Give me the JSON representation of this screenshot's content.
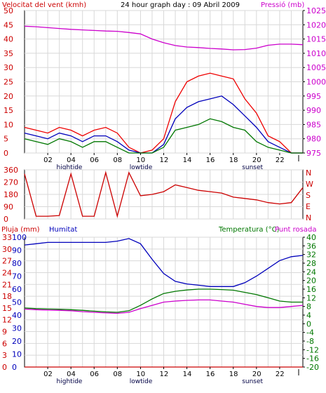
{
  "chart_data": [
    {
      "type": "line",
      "title": "24 hour graph day : 09 Abril 2009",
      "left_label": "Velocitat del vent (kmh)",
      "right_label": "Pressió (mb)",
      "x": [
        0,
        1,
        2,
        3,
        4,
        5,
        6,
        7,
        8,
        9,
        10,
        11,
        12,
        13,
        14,
        15,
        16,
        17,
        18,
        19,
        20,
        21,
        22,
        23,
        24
      ],
      "x_ticks": [
        "02",
        "04",
        "06",
        "08",
        "10",
        "12",
        "14",
        "16",
        "18",
        "20",
        "22"
      ],
      "x_markers": [
        "hightide",
        "lowtide",
        "sunset"
      ],
      "ylim": [
        0,
        50
      ],
      "y_ticks": [
        0,
        5,
        10,
        15,
        20,
        25,
        30,
        35,
        40,
        45,
        50
      ],
      "y2lim": [
        975,
        1025
      ],
      "y2_ticks": [
        975,
        980,
        985,
        990,
        995,
        1000,
        1005,
        1010,
        1015,
        1020,
        1025
      ],
      "series": [
        {
          "axis": "right",
          "color": "#cc00cc",
          "values": [
            1019.5,
            1019.3,
            1019.0,
            1018.7,
            1018.4,
            1018.2,
            1018.0,
            1017.8,
            1017.7,
            1017.3,
            1016.8,
            1015.0,
            1013.7,
            1012.7,
            1012.2,
            1012.0,
            1011.7,
            1011.5,
            1011.2,
            1011.3,
            1011.8,
            1012.8,
            1013.2,
            1013.2,
            1013.0
          ]
        },
        {
          "axis": "left",
          "color": "#ee0000",
          "values": [
            9,
            8,
            7,
            9,
            8,
            6,
            8,
            9,
            7,
            2,
            0,
            1,
            5,
            18,
            25,
            27,
            28,
            27,
            26,
            19,
            14,
            6,
            4,
            0,
            0
          ]
        },
        {
          "axis": "left",
          "color": "#0000bb",
          "values": [
            7,
            6,
            5,
            7,
            6,
            4,
            6,
            6,
            4,
            1,
            0,
            0,
            3,
            12,
            16,
            18,
            19,
            20,
            17,
            13,
            9,
            4,
            2,
            0,
            0
          ]
        },
        {
          "axis": "left",
          "color": "#007700",
          "values": [
            5,
            4,
            3,
            5,
            4,
            2,
            4,
            4,
            2,
            0,
            0,
            0,
            2,
            8,
            9,
            10,
            12,
            11,
            9,
            8,
            4,
            2,
            1,
            0,
            0
          ]
        }
      ]
    },
    {
      "type": "line",
      "left_label": "",
      "right_compass": [
        "N",
        "W",
        "S",
        "E",
        "N"
      ],
      "x": [
        0,
        1,
        2,
        3,
        4,
        5,
        6,
        7,
        8,
        9,
        10,
        11,
        12,
        13,
        14,
        15,
        16,
        17,
        18,
        19,
        20,
        21,
        22,
        23,
        24
      ],
      "x_ticks": [],
      "ylim": [
        0,
        360
      ],
      "y_ticks": [
        0,
        90,
        180,
        270,
        360
      ],
      "series": [
        {
          "axis": "left",
          "color": "#cc0000",
          "values": [
            330,
            20,
            20,
            25,
            330,
            20,
            20,
            340,
            20,
            340,
            170,
            180,
            200,
            250,
            230,
            210,
            200,
            190,
            160,
            150,
            140,
            120,
            110,
            120,
            230
          ]
        }
      ]
    },
    {
      "type": "line",
      "left_label": "Pluja (mm)",
      "mid_label": "Humitat",
      "right_label_a": "Temperatura (°C)",
      "right_label_b": "Punt rosada",
      "x": [
        0,
        1,
        2,
        3,
        4,
        5,
        6,
        7,
        8,
        9,
        10,
        11,
        12,
        13,
        14,
        15,
        16,
        17,
        18,
        19,
        20,
        21,
        22,
        23,
        24
      ],
      "x_ticks": [
        "02",
        "04",
        "06",
        "08",
        "10",
        "12",
        "14",
        "16",
        "18",
        "20",
        "22"
      ],
      "x_markers": [
        "hightide",
        "lowtide",
        "sunset"
      ],
      "ylim": [
        0,
        33
      ],
      "y_ticks": [
        "0",
        "3",
        "6",
        "9",
        "12",
        "15",
        "18",
        "21",
        "24",
        "27",
        "30",
        "33"
      ],
      "y_mid_ticks": [
        "0",
        "10",
        "20",
        "30",
        "40",
        "50",
        "60",
        "70",
        "80",
        "90",
        "100"
      ],
      "y2lim": [
        -20,
        40
      ],
      "y2_ticks": [
        -20,
        -16,
        -12,
        -8,
        -4,
        0,
        4,
        8,
        12,
        16,
        20,
        24,
        28,
        32,
        36,
        40
      ],
      "series": [
        {
          "axis": "mid",
          "color": "#0000bb",
          "values": [
            94,
            95,
            96,
            96,
            96,
            96,
            96,
            96,
            97,
            99,
            95,
            83,
            72,
            66,
            64,
            63,
            62,
            62,
            62,
            65,
            70,
            76,
            82,
            85,
            86
          ]
        },
        {
          "axis": "right",
          "color": "#007700",
          "values": [
            7.3,
            7.0,
            6.8,
            6.7,
            6.5,
            6.2,
            5.8,
            5.5,
            5.3,
            6.0,
            8.5,
            11.5,
            14.0,
            15.0,
            15.6,
            16.0,
            16.0,
            15.8,
            15.5,
            14.5,
            13.5,
            12.0,
            10.5,
            10.0,
            10.0
          ]
        },
        {
          "axis": "right",
          "color": "#cc00cc",
          "values": [
            6.8,
            6.5,
            6.3,
            6.2,
            6.0,
            5.6,
            5.3,
            5.0,
            4.8,
            5.3,
            7.0,
            8.5,
            10.0,
            10.5,
            10.8,
            11.0,
            11.0,
            10.5,
            10.0,
            9.0,
            8.0,
            7.5,
            7.5,
            8.0,
            8.5
          ]
        },
        {
          "axis": "left",
          "color": "#cc0000",
          "values": [
            0,
            0,
            0,
            0,
            0,
            0,
            0,
            0,
            0,
            0,
            0,
            0,
            0,
            0,
            0,
            0,
            0,
            0,
            0,
            0,
            0,
            0,
            0,
            0,
            0
          ]
        }
      ]
    }
  ]
}
